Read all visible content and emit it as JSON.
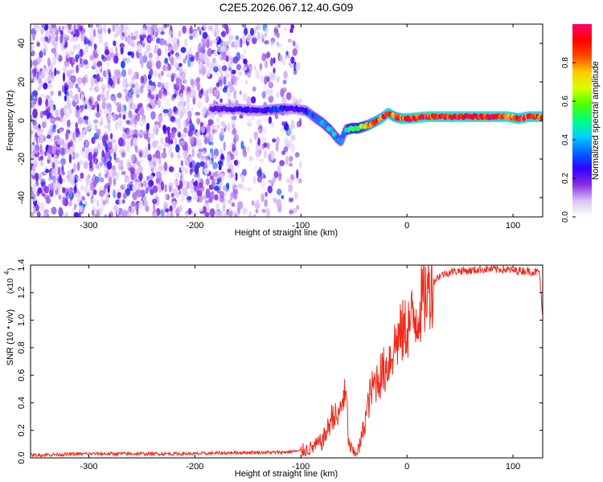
{
  "title": "C2E5.2026.067.12.40.G09",
  "chart_data": [
    {
      "type": "heatmap",
      "xlabel": "Height of straight line (km)",
      "ylabel": "Frequency (Hz)",
      "xlim": [
        -355,
        128
      ],
      "ylim": [
        -50,
        50
      ],
      "xticks": [
        -300,
        -200,
        -100,
        0,
        100
      ],
      "yticks": [
        -40,
        -20,
        0,
        20,
        40
      ],
      "noise_region": {
        "x_from": -355,
        "x_to": -100,
        "freq_from": -50,
        "freq_to": 50
      },
      "signal_trace": {
        "height_km": [
          -185,
          -160,
          -140,
          -120,
          -105,
          -95,
          -88,
          -80,
          -72,
          -66,
          -62,
          -58,
          -52,
          -46,
          -40,
          -35,
          -28,
          -22,
          -18,
          -12,
          -5,
          0,
          20,
          40,
          60,
          80,
          95,
          105,
          115,
          128
        ],
        "freq_hz": [
          6,
          6,
          5,
          6,
          6,
          5,
          2,
          -1,
          -5,
          -9,
          -11,
          -5,
          -4,
          -4,
          -3,
          -2,
          0,
          2,
          4,
          2,
          1,
          1,
          2,
          2,
          2,
          2,
          2,
          1,
          2,
          2
        ],
        "amplitude": [
          0.2,
          0.25,
          0.25,
          0.3,
          0.25,
          0.3,
          0.35,
          0.4,
          0.45,
          0.4,
          0.35,
          0.45,
          0.6,
          0.55,
          0.7,
          0.8,
          0.85,
          0.9,
          0.92,
          0.85,
          0.9,
          0.95,
          0.98,
          0.98,
          0.98,
          0.98,
          0.95,
          0.9,
          0.95,
          0.95
        ]
      }
    },
    {
      "type": "line",
      "xlabel": "Height of straight line (km)",
      "ylabel": "SNR (10 * v/v)",
      "y_multiplier": "(x10",
      "y_multiplier_exp": "4",
      "y_multiplier_close": ")",
      "xlim": [
        -355,
        128
      ],
      "ylim": [
        0,
        1.4
      ],
      "xticks": [
        -300,
        -200,
        -100,
        0,
        100
      ],
      "yticks": [
        0.0,
        0.2,
        0.4,
        0.6,
        0.8,
        1.0,
        1.2,
        1.4
      ],
      "series": [
        {
          "name": "SNR",
          "color": "#ee2a1b",
          "x": [
            -355,
            -300,
            -250,
            -200,
            -150,
            -120,
            -100,
            -90,
            -80,
            -75,
            -70,
            -65,
            -60,
            -57,
            -55,
            -50,
            -45,
            -40,
            -35,
            -30,
            -25,
            -20,
            -15,
            -10,
            -5,
            0,
            5,
            10,
            15,
            20,
            25,
            30,
            40,
            50,
            60,
            70,
            80,
            90,
            100,
            110,
            120,
            125,
            128
          ],
          "values": [
            0.02,
            0.03,
            0.03,
            0.03,
            0.04,
            0.04,
            0.05,
            0.07,
            0.12,
            0.2,
            0.32,
            0.28,
            0.45,
            0.42,
            0.1,
            0.03,
            0.07,
            0.25,
            0.45,
            0.55,
            0.6,
            0.65,
            0.75,
            0.85,
            0.9,
            0.95,
            1.0,
            1.05,
            1.15,
            1.22,
            1.28,
            1.32,
            1.35,
            1.36,
            1.36,
            1.37,
            1.37,
            1.37,
            1.36,
            1.36,
            1.35,
            1.35,
            1.0
          ]
        }
      ]
    }
  ],
  "colorbar": {
    "label": "Normalized spectral amplitude",
    "ticks": [
      "0.0",
      "0.2",
      "0.4",
      "0.6",
      "0.8"
    ],
    "tick_values": [
      0.0,
      0.2,
      0.4,
      0.6,
      0.8
    ],
    "colors": [
      "#ffffff",
      "#d9c6f7",
      "#8a2be2",
      "#2f00ff",
      "#0066ff",
      "#00d0ff",
      "#00ff80",
      "#4cff00",
      "#d8ff00",
      "#ffcc00",
      "#ff4a00",
      "#ff0000",
      "#ff0070"
    ]
  }
}
